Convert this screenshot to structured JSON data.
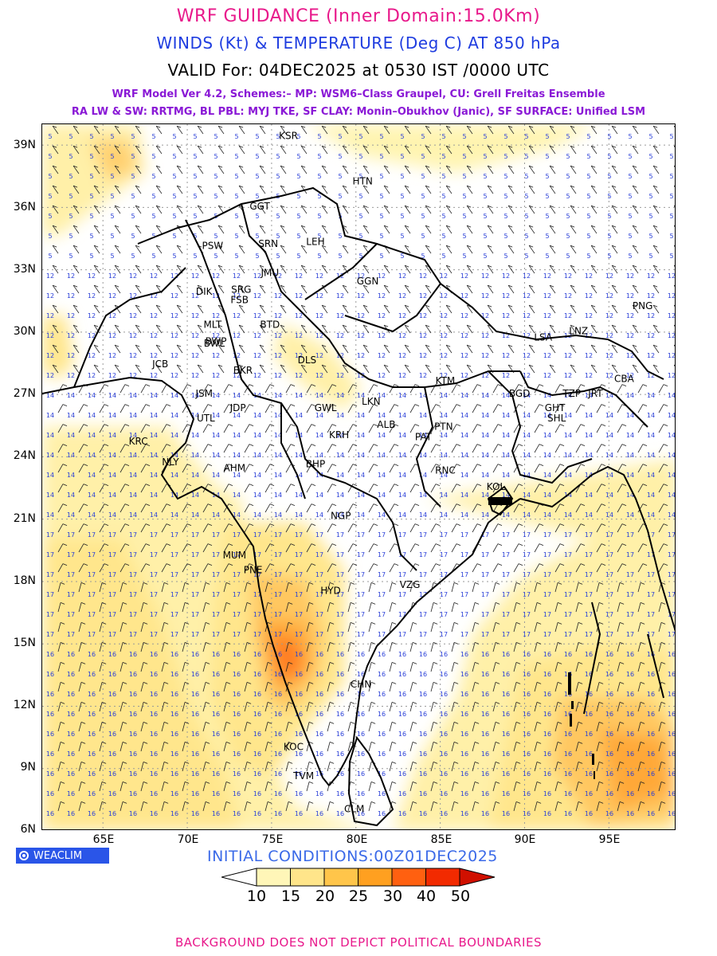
{
  "titles": {
    "line1": "WRF GUIDANCE (Inner Domain:15.0Km)",
    "line2": "WINDS (Kt) & TEMPERATURE (Deg C) AT 850 hPa",
    "line3": "VALID For: 04DEC2025 at 0530 IST /0000 UTC",
    "line4": "WRF Model Ver 4.2, Schemes:– MP: WSM6–Class Graupel, CU: Grell Freitas Ensemble",
    "line5": "RA LW & SW: RRTMG, BL PBL: MYJ TKE, SF CLAY: Monin–Obukhov (Janic), SF SURFACE: Unified LSM"
  },
  "axes": {
    "lat_labels": [
      "39N",
      "36N",
      "33N",
      "30N",
      "27N",
      "24N",
      "21N",
      "18N",
      "15N",
      "12N",
      "9N",
      "6N"
    ],
    "lon_labels": [
      "65E",
      "70E",
      "75E",
      "80E",
      "85E",
      "90E",
      "95E"
    ]
  },
  "stations": [
    {
      "code": "KSR",
      "lon": 76.0,
      "lat": 39.3
    },
    {
      "code": "HTN",
      "lon": 80.4,
      "lat": 37.1
    },
    {
      "code": "GGT",
      "lon": 74.3,
      "lat": 35.9
    },
    {
      "code": "LEH",
      "lon": 77.6,
      "lat": 34.2
    },
    {
      "code": "PSW",
      "lon": 71.5,
      "lat": 34.0
    },
    {
      "code": "SRN",
      "lon": 74.8,
      "lat": 34.1
    },
    {
      "code": "JMU",
      "lon": 74.9,
      "lat": 32.7
    },
    {
      "code": "GGN",
      "lon": 80.7,
      "lat": 32.3
    },
    {
      "code": "DIK",
      "lon": 71.0,
      "lat": 31.8
    },
    {
      "code": "SRG",
      "lon": 73.2,
      "lat": 31.9
    },
    {
      "code": "FSB",
      "lon": 73.1,
      "lat": 31.4
    },
    {
      "code": "PNG",
      "lon": 97.0,
      "lat": 31.1
    },
    {
      "code": "MLT",
      "lon": 71.5,
      "lat": 30.2
    },
    {
      "code": "BWP",
      "lon": 71.7,
      "lat": 29.4
    },
    {
      "code": "BTD",
      "lon": 74.9,
      "lat": 30.2
    },
    {
      "code": "LSA",
      "lon": 91.1,
      "lat": 29.6
    },
    {
      "code": "LNZ",
      "lon": 93.2,
      "lat": 29.9
    },
    {
      "code": "BWL",
      "lon": 71.6,
      "lat": 29.3
    },
    {
      "code": "JCB",
      "lon": 68.4,
      "lat": 28.3
    },
    {
      "code": "DLS",
      "lon": 77.1,
      "lat": 28.5
    },
    {
      "code": "BKR",
      "lon": 73.3,
      "lat": 28.0
    },
    {
      "code": "KTM",
      "lon": 85.3,
      "lat": 27.5
    },
    {
      "code": "JSM",
      "lon": 71.0,
      "lat": 26.9
    },
    {
      "code": "JDP",
      "lon": 73.0,
      "lat": 26.2
    },
    {
      "code": "GWL",
      "lon": 78.2,
      "lat": 26.2
    },
    {
      "code": "LKN",
      "lon": 80.9,
      "lat": 26.5
    },
    {
      "code": "BGD",
      "lon": 89.7,
      "lat": 26.9
    },
    {
      "code": "TZP",
      "lon": 92.8,
      "lat": 26.9
    },
    {
      "code": "JRT",
      "lon": 94.2,
      "lat": 26.9
    },
    {
      "code": "CBA",
      "lon": 95.9,
      "lat": 27.6
    },
    {
      "code": "GHT",
      "lon": 91.8,
      "lat": 26.2
    },
    {
      "code": "SHL",
      "lon": 91.9,
      "lat": 25.7
    },
    {
      "code": "UTL",
      "lon": 71.1,
      "lat": 25.7
    },
    {
      "code": "PTN",
      "lon": 85.2,
      "lat": 25.3
    },
    {
      "code": "ALB",
      "lon": 81.8,
      "lat": 25.4
    },
    {
      "code": "KRH",
      "lon": 79.0,
      "lat": 24.9
    },
    {
      "code": "PAT",
      "lon": 84.0,
      "lat": 24.8
    },
    {
      "code": "KRC",
      "lon": 67.1,
      "lat": 24.6
    },
    {
      "code": "NLY",
      "lon": 69.0,
      "lat": 23.6
    },
    {
      "code": "AHM",
      "lon": 72.8,
      "lat": 23.3
    },
    {
      "code": "BHP",
      "lon": 77.6,
      "lat": 23.5
    },
    {
      "code": "RNC",
      "lon": 85.3,
      "lat": 23.2
    },
    {
      "code": "KOL",
      "lon": 88.3,
      "lat": 22.4
    },
    {
      "code": "NGP",
      "lon": 79.1,
      "lat": 21.0
    },
    {
      "code": "MUM",
      "lon": 72.8,
      "lat": 19.1
    },
    {
      "code": "PNE",
      "lon": 73.9,
      "lat": 18.4
    },
    {
      "code": "HYD",
      "lon": 78.5,
      "lat": 17.4
    },
    {
      "code": "VZG",
      "lon": 83.2,
      "lat": 17.7
    },
    {
      "code": "CHN",
      "lon": 80.3,
      "lat": 12.9
    },
    {
      "code": "KOC",
      "lon": 76.3,
      "lat": 9.9
    },
    {
      "code": "TVM",
      "lon": 76.9,
      "lat": 8.5
    },
    {
      "code": "CLM",
      "lon": 79.9,
      "lat": 6.9
    }
  ],
  "branding": {
    "badge": "WEACLIM",
    "badge_icon": "globe-icon"
  },
  "initial_conditions": "INITIAL CONDITIONS:00Z01DEC2025",
  "colorbar": {
    "labels": [
      "10",
      "15",
      "20",
      "25",
      "30",
      "40",
      "50"
    ],
    "colors": [
      "#ffffff",
      "#fff6b8",
      "#ffe58a",
      "#ffc54a",
      "#ffa020",
      "#ff6010",
      "#f22a00",
      "#d01000"
    ]
  },
  "footer": "BACKGROUND DOES NOT DEPICT POLITICAL BOUNDARIES"
}
